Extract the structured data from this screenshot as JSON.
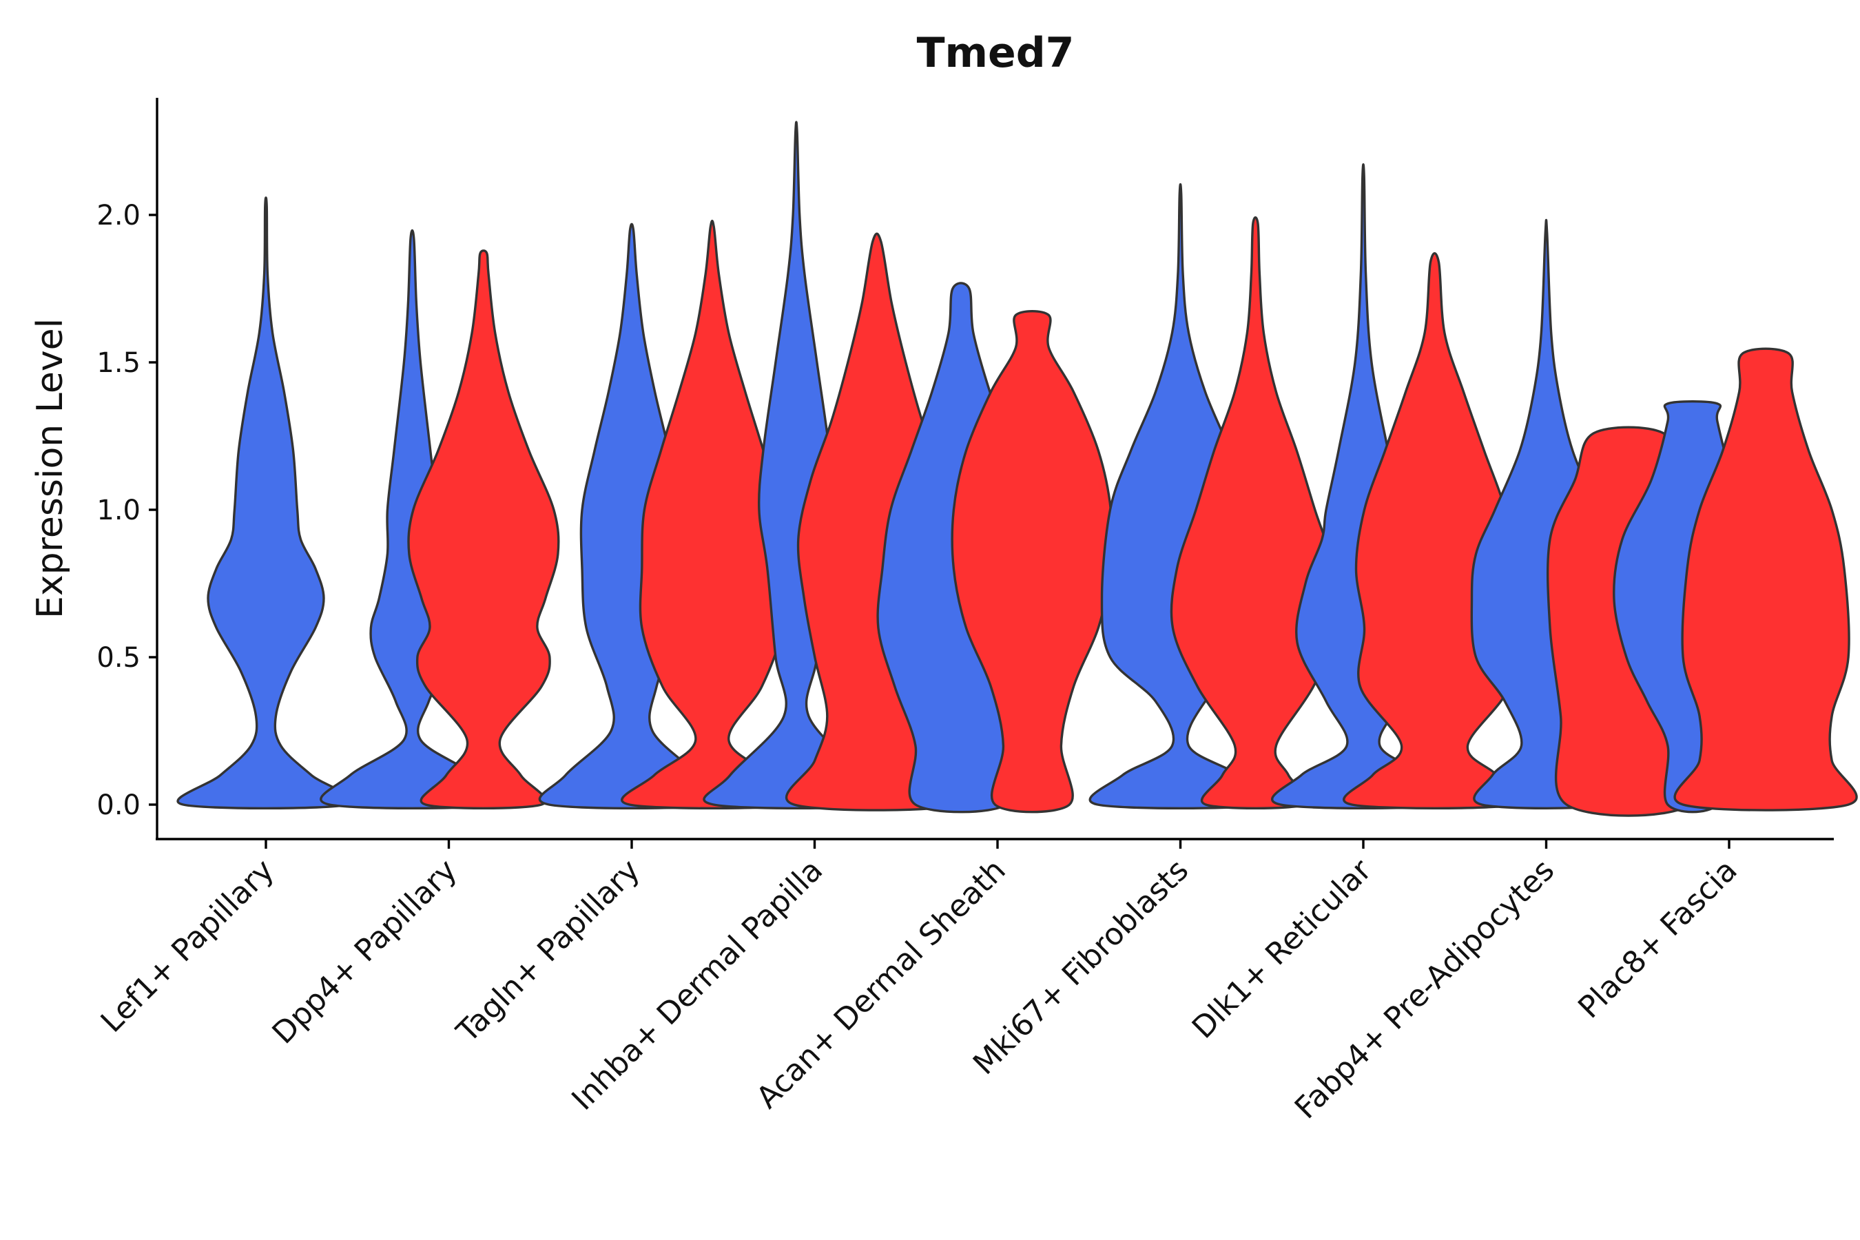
{
  "chart_data": {
    "type": "violin",
    "title": "Tmed7",
    "xlabel": "",
    "ylabel": "Expression Level",
    "ylim": [
      -0.11,
      2.4
    ],
    "yticks": [
      "0.0",
      "0.5",
      "1.0",
      "1.5",
      "2.0"
    ],
    "grid": false,
    "legend": "none",
    "colors": {
      "blue": "#4570EB",
      "red": "#FE3131"
    },
    "categories": [
      "Lef1+ Papillary",
      "Dpp4+ Papillary",
      "Tagln+ Papillary",
      "Inhba+ Dermal Papilla",
      "Acan+ Dermal Sheath",
      "Mki67+ Fibroblasts",
      "Dlk1+ Reticular",
      "Fabp4+ Pre-Adipocytes",
      "Plac8+ Fascia"
    ],
    "violins": [
      {
        "category": "Lef1+ Papillary",
        "group": "blue",
        "x": 0.0,
        "max": 2.03,
        "profile": [
          [
            0,
            1
          ],
          [
            0.1,
            0.55
          ],
          [
            0.2,
            0.18
          ],
          [
            0.3,
            0.12
          ],
          [
            0.45,
            0.3
          ],
          [
            0.6,
            0.6
          ],
          [
            0.7,
            0.7
          ],
          [
            0.8,
            0.6
          ],
          [
            0.9,
            0.42
          ],
          [
            1.0,
            0.38
          ],
          [
            1.2,
            0.33
          ],
          [
            1.4,
            0.22
          ],
          [
            1.6,
            0.08
          ],
          [
            1.8,
            0.02
          ],
          [
            2.03,
            0.01
          ]
        ]
      },
      {
        "category": "Dpp4+ Papillary",
        "group": "blue",
        "x": 0.8,
        "max": 1.92,
        "profile": [
          [
            0,
            1
          ],
          [
            0.1,
            0.75
          ],
          [
            0.22,
            0.1
          ],
          [
            0.35,
            0.2
          ],
          [
            0.5,
            0.45
          ],
          [
            0.6,
            0.5
          ],
          [
            0.7,
            0.4
          ],
          [
            0.85,
            0.3
          ],
          [
            1.0,
            0.3
          ],
          [
            1.2,
            0.22
          ],
          [
            1.5,
            0.1
          ],
          [
            1.7,
            0.05
          ],
          [
            1.92,
            0.02
          ]
        ]
      },
      {
        "category": "Dpp4+ Papillary",
        "group": "red",
        "x": 1.19,
        "max": 1.87,
        "profile": [
          [
            0,
            0.7
          ],
          [
            0.1,
            0.45
          ],
          [
            0.22,
            0.2
          ],
          [
            0.4,
            0.7
          ],
          [
            0.5,
            0.8
          ],
          [
            0.6,
            0.65
          ],
          [
            0.7,
            0.75
          ],
          [
            0.85,
            0.9
          ],
          [
            1.0,
            0.85
          ],
          [
            1.2,
            0.55
          ],
          [
            1.4,
            0.3
          ],
          [
            1.6,
            0.14
          ],
          [
            1.8,
            0.06
          ],
          [
            1.87,
            0.04
          ]
        ]
      },
      {
        "category": "Tagln+ Papillary",
        "group": "blue",
        "x": 2.0,
        "max": 1.95,
        "profile": [
          [
            0,
            1
          ],
          [
            0.1,
            0.8
          ],
          [
            0.25,
            0.25
          ],
          [
            0.4,
            0.3
          ],
          [
            0.6,
            0.55
          ],
          [
            0.8,
            0.6
          ],
          [
            1.0,
            0.6
          ],
          [
            1.2,
            0.45
          ],
          [
            1.4,
            0.28
          ],
          [
            1.6,
            0.14
          ],
          [
            1.8,
            0.06
          ],
          [
            1.95,
            0.02
          ]
        ]
      },
      {
        "category": "Tagln+ Papillary",
        "group": "red",
        "x": 2.44,
        "max": 1.96,
        "profile": [
          [
            0,
            1
          ],
          [
            0.1,
            0.7
          ],
          [
            0.22,
            0.2
          ],
          [
            0.4,
            0.6
          ],
          [
            0.6,
            0.85
          ],
          [
            0.8,
            0.85
          ],
          [
            1.0,
            0.82
          ],
          [
            1.2,
            0.62
          ],
          [
            1.4,
            0.4
          ],
          [
            1.6,
            0.2
          ],
          [
            1.8,
            0.08
          ],
          [
            1.96,
            0.02
          ]
        ]
      },
      {
        "category": "Inhba+ Dermal Papilla",
        "group": "blue",
        "x": 2.9,
        "max": 2.28,
        "profile": [
          [
            0,
            1
          ],
          [
            0.1,
            0.8
          ],
          [
            0.3,
            0.15
          ],
          [
            0.5,
            0.25
          ],
          [
            0.8,
            0.35
          ],
          [
            1.0,
            0.45
          ],
          [
            1.2,
            0.4
          ],
          [
            1.5,
            0.25
          ],
          [
            1.8,
            0.1
          ],
          [
            2.0,
            0.04
          ],
          [
            2.28,
            0.01
          ]
        ]
      },
      {
        "category": "Inhba+ Dermal Papilla",
        "group": "red",
        "x": 3.34,
        "max": 1.91,
        "profile": [
          [
            0,
            1
          ],
          [
            0.15,
            0.75
          ],
          [
            0.3,
            0.6
          ],
          [
            0.5,
            0.75
          ],
          [
            0.7,
            0.88
          ],
          [
            0.9,
            0.95
          ],
          [
            1.1,
            0.8
          ],
          [
            1.3,
            0.55
          ],
          [
            1.5,
            0.35
          ],
          [
            1.7,
            0.18
          ],
          [
            1.91,
            0.05
          ]
        ]
      },
      {
        "category": "Acan+ Dermal Sheath",
        "group": "blue",
        "x": 3.8,
        "max": 1.75,
        "profile": [
          [
            0,
            0.55
          ],
          [
            0.2,
            0.55
          ],
          [
            0.4,
            0.8
          ],
          [
            0.6,
            1.0
          ],
          [
            0.8,
            0.95
          ],
          [
            1.0,
            0.85
          ],
          [
            1.2,
            0.6
          ],
          [
            1.4,
            0.35
          ],
          [
            1.6,
            0.15
          ],
          [
            1.75,
            0.1
          ]
        ]
      },
      {
        "category": "Acan+ Dermal Sheath",
        "group": "red",
        "x": 4.19,
        "max": 1.66,
        "profile": [
          [
            0,
            0.45
          ],
          [
            0.2,
            0.35
          ],
          [
            0.4,
            0.5
          ],
          [
            0.6,
            0.8
          ],
          [
            0.8,
            0.95
          ],
          [
            1.0,
            0.95
          ],
          [
            1.2,
            0.8
          ],
          [
            1.4,
            0.5
          ],
          [
            1.55,
            0.2
          ],
          [
            1.66,
            0.2
          ]
        ]
      },
      {
        "category": "Mki67+ Fibroblasts",
        "group": "blue",
        "x": 5.0,
        "max": 2.07,
        "profile": [
          [
            0,
            1
          ],
          [
            0.1,
            0.7
          ],
          [
            0.2,
            0.1
          ],
          [
            0.35,
            0.3
          ],
          [
            0.5,
            0.85
          ],
          [
            0.7,
            0.95
          ],
          [
            1.0,
            0.85
          ],
          [
            1.2,
            0.6
          ],
          [
            1.4,
            0.3
          ],
          [
            1.6,
            0.1
          ],
          [
            1.8,
            0.03
          ],
          [
            2.07,
            0.01
          ]
        ]
      },
      {
        "category": "Mki67+ Fibroblasts",
        "group": "red",
        "x": 5.41,
        "max": 1.97,
        "profile": [
          [
            0,
            0.6
          ],
          [
            0.1,
            0.4
          ],
          [
            0.2,
            0.25
          ],
          [
            0.4,
            0.7
          ],
          [
            0.6,
            1.0
          ],
          [
            0.8,
            0.95
          ],
          [
            1.0,
            0.72
          ],
          [
            1.2,
            0.5
          ],
          [
            1.4,
            0.25
          ],
          [
            1.6,
            0.1
          ],
          [
            1.8,
            0.05
          ],
          [
            1.97,
            0.03
          ]
        ]
      },
      {
        "category": "Dlk1+ Reticular",
        "group": "blue",
        "x": 6.0,
        "max": 2.13,
        "profile": [
          [
            0,
            1
          ],
          [
            0.1,
            0.75
          ],
          [
            0.2,
            0.2
          ],
          [
            0.35,
            0.45
          ],
          [
            0.55,
            0.8
          ],
          [
            0.75,
            0.7
          ],
          [
            0.9,
            0.5
          ],
          [
            1.0,
            0.45
          ],
          [
            1.2,
            0.3
          ],
          [
            1.5,
            0.1
          ],
          [
            1.8,
            0.03
          ],
          [
            2.13,
            0.01
          ]
        ]
      },
      {
        "category": "Dlk1+ Reticular",
        "group": "red",
        "x": 6.39,
        "max": 1.84,
        "profile": [
          [
            0,
            1
          ],
          [
            0.1,
            0.75
          ],
          [
            0.2,
            0.4
          ],
          [
            0.4,
            0.9
          ],
          [
            0.6,
            0.85
          ],
          [
            0.8,
            0.95
          ],
          [
            1.0,
            0.85
          ],
          [
            1.2,
            0.6
          ],
          [
            1.4,
            0.35
          ],
          [
            1.6,
            0.12
          ],
          [
            1.84,
            0.05
          ]
        ]
      },
      {
        "category": "Fabp4+ Pre-Adipocytes",
        "group": "blue",
        "x": 7.0,
        "max": 1.94,
        "profile": [
          [
            0,
            0.78
          ],
          [
            0.1,
            0.65
          ],
          [
            0.2,
            0.3
          ],
          [
            0.35,
            0.5
          ],
          [
            0.5,
            0.85
          ],
          [
            0.7,
            0.9
          ],
          [
            0.85,
            0.85
          ],
          [
            1.0,
            0.62
          ],
          [
            1.2,
            0.32
          ],
          [
            1.4,
            0.15
          ],
          [
            1.6,
            0.06
          ],
          [
            1.94,
            0.01
          ]
        ]
      },
      {
        "category": "Fabp4+ Pre-Adipocytes",
        "group": "red",
        "x": 7.45,
        "max": 1.26,
        "profile": [
          [
            0,
            0.75
          ],
          [
            0.3,
            0.82
          ],
          [
            0.6,
            0.95
          ],
          [
            0.9,
            0.95
          ],
          [
            1.1,
            0.65
          ],
          [
            1.26,
            0.42
          ]
        ]
      },
      {
        "category": "Plac8+ Fascia",
        "group": "blue",
        "x": 7.8,
        "max": 1.36,
        "profile": [
          [
            0,
            0.3
          ],
          [
            0.2,
            0.3
          ],
          [
            0.35,
            0.55
          ],
          [
            0.5,
            0.8
          ],
          [
            0.7,
            0.95
          ],
          [
            0.9,
            0.85
          ],
          [
            1.1,
            0.5
          ],
          [
            1.3,
            0.3
          ],
          [
            1.36,
            0.3
          ]
        ]
      },
      {
        "category": "Plac8+ Fascia",
        "group": "red",
        "x": 8.2,
        "max": 1.53,
        "profile": [
          [
            0,
            1
          ],
          [
            0.15,
            0.8
          ],
          [
            0.3,
            0.8
          ],
          [
            0.5,
            1.0
          ],
          [
            0.8,
            0.95
          ],
          [
            1.0,
            0.8
          ],
          [
            1.2,
            0.52
          ],
          [
            1.4,
            0.32
          ],
          [
            1.53,
            0.28
          ]
        ]
      }
    ]
  }
}
